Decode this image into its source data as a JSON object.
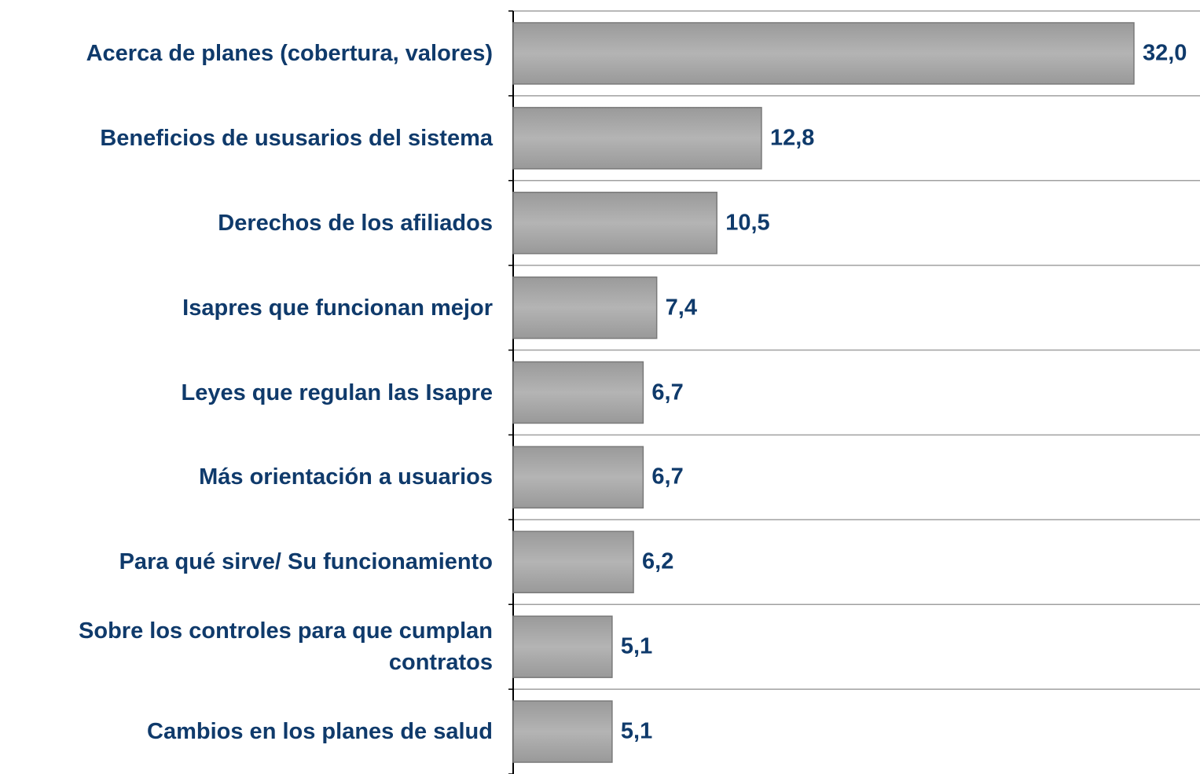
{
  "chart_data": {
    "type": "bar",
    "orientation": "horizontal",
    "categories": [
      "Acerca de planes (cobertura, valores)",
      "Beneficios de ususarios del sistema",
      "Derechos de los afiliados",
      "Isapres que funcionan mejor",
      "Leyes que regulan las Isapre",
      "Más orientación a usuarios",
      "Para qué sirve/ Su funcionamiento",
      "Sobre los controles para que cumplan contratos",
      "Cambios en los planes de salud"
    ],
    "values": [
      32.0,
      12.8,
      10.5,
      7.4,
      6.7,
      6.7,
      6.2,
      5.1,
      5.1
    ],
    "value_labels": [
      "32,0",
      "12,8",
      "10,5",
      "7,4",
      "6,7",
      "6,7",
      "6,2",
      "5,1",
      "5,1"
    ],
    "color": "#a6a6a6",
    "xlim": [
      0,
      35
    ]
  }
}
